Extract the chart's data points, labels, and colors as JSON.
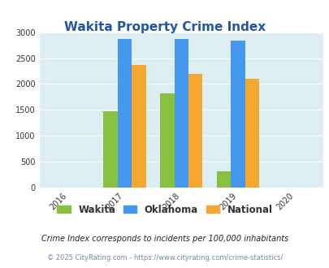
{
  "title": "Wakita Property Crime Index",
  "title_color": "#2255aa",
  "years": [
    2016,
    2017,
    2018,
    2019,
    2020
  ],
  "bar_years": [
    2017,
    2018,
    2019
  ],
  "wakita": [
    1475,
    1825,
    320
  ],
  "oklahoma": [
    2870,
    2875,
    2840
  ],
  "national": [
    2365,
    2195,
    2100
  ],
  "wakita_color": "#88c040",
  "oklahoma_color": "#4499ee",
  "national_color": "#f5a830",
  "ylim": [
    0,
    3000
  ],
  "yticks": [
    0,
    500,
    1000,
    1500,
    2000,
    2500,
    3000
  ],
  "background_color": "#ddeef3",
  "legend_labels": [
    "Wakita",
    "Oklahoma",
    "National"
  ],
  "footnote1": "Crime Index corresponds to incidents per 100,000 inhabitants",
  "footnote2": "© 2025 CityRating.com - https://www.cityrating.com/crime-statistics/",
  "footnote1_color": "#222222",
  "footnote2_color": "#7788aa"
}
